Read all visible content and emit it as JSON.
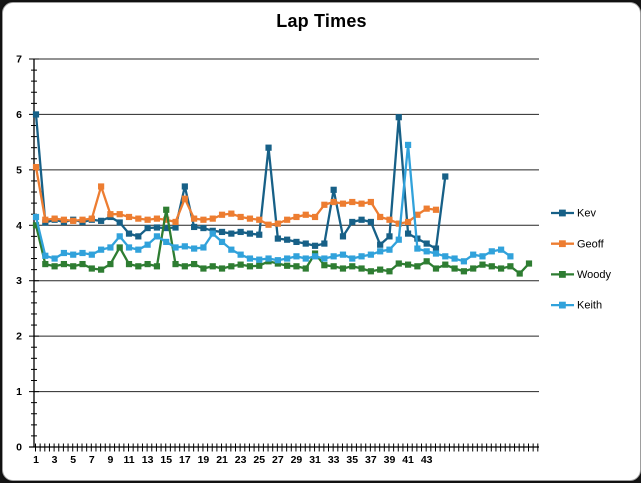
{
  "colors": {
    "background": "#FFFFFF",
    "card_border": "#9E9E9E",
    "axis": "#000000",
    "gridline": "#262626",
    "title_text": "#000000",
    "tick_label_text": "#000000",
    "legend_text": "#000000"
  },
  "chart_data": {
    "type": "line",
    "title": "Lap Times",
    "xlabel": "",
    "ylabel": "",
    "ylim": [
      0,
      7
    ],
    "y_tick_labels": [
      "0",
      "1",
      "2",
      "3",
      "4",
      "5",
      "6",
      "7"
    ],
    "x_tick_labels": [
      "1",
      "3",
      "5",
      "7",
      "9",
      "11",
      "13",
      "15",
      "17",
      "19",
      "21",
      "23",
      "25",
      "27",
      "29",
      "31",
      "33",
      "35",
      "37",
      "39",
      "41",
      "43"
    ],
    "x_tick_label_interval": 2,
    "x_axis_max_category": 54,
    "grid": "horizontal-major",
    "legend_position": "right",
    "marker": "square",
    "series": [
      {
        "name": "Kev",
        "color": "#176087",
        "values": [
          6.0,
          4.05,
          4.1,
          4.06,
          4.1,
          4.06,
          4.1,
          4.08,
          4.15,
          4.05,
          3.85,
          3.8,
          3.95,
          3.96,
          3.95,
          3.96,
          4.7,
          3.97,
          3.95,
          3.9,
          3.88,
          3.85,
          3.88,
          3.85,
          3.83,
          5.4,
          3.76,
          3.74,
          3.7,
          3.67,
          3.63,
          3.67,
          4.64,
          3.8,
          4.06,
          4.1,
          4.06,
          3.65,
          3.8,
          5.95,
          3.85,
          3.76,
          3.67,
          3.58,
          4.88
        ]
      },
      {
        "name": "Geoff",
        "color": "#ED7D31",
        "values": [
          5.05,
          4.1,
          4.12,
          4.1,
          4.08,
          4.1,
          4.12,
          4.7,
          4.2,
          4.2,
          4.15,
          4.12,
          4.1,
          4.12,
          4.1,
          4.06,
          4.48,
          4.12,
          4.1,
          4.12,
          4.19,
          4.21,
          4.15,
          4.12,
          4.1,
          4.01,
          4.03,
          4.1,
          4.15,
          4.19,
          4.15,
          4.37,
          4.42,
          4.39,
          4.42,
          4.39,
          4.42,
          4.15,
          4.1,
          4.03,
          4.06,
          4.19,
          4.3,
          4.28
        ]
      },
      {
        "name": "Woody",
        "color": "#2E7D32",
        "values": [
          4.0,
          3.3,
          3.26,
          3.3,
          3.26,
          3.3,
          3.22,
          3.2,
          3.3,
          3.6,
          3.3,
          3.26,
          3.3,
          3.26,
          4.28,
          3.3,
          3.26,
          3.3,
          3.22,
          3.26,
          3.22,
          3.26,
          3.29,
          3.26,
          3.27,
          3.35,
          3.31,
          3.27,
          3.26,
          3.22,
          3.49,
          3.28,
          3.26,
          3.22,
          3.26,
          3.22,
          3.17,
          3.2,
          3.17,
          3.31,
          3.29,
          3.26,
          3.35,
          3.22,
          3.29,
          3.22,
          3.17,
          3.22,
          3.29,
          3.26,
          3.22,
          3.26,
          3.13,
          3.31
        ]
      },
      {
        "name": "Keith",
        "color": "#31A2DB",
        "values": [
          4.15,
          3.45,
          3.4,
          3.5,
          3.47,
          3.5,
          3.47,
          3.56,
          3.6,
          3.8,
          3.6,
          3.56,
          3.65,
          3.8,
          3.7,
          3.6,
          3.62,
          3.58,
          3.6,
          3.85,
          3.7,
          3.56,
          3.47,
          3.4,
          3.38,
          3.4,
          3.37,
          3.4,
          3.44,
          3.4,
          3.44,
          3.4,
          3.44,
          3.47,
          3.4,
          3.44,
          3.47,
          3.53,
          3.56,
          3.74,
          5.45,
          3.58,
          3.53,
          3.49,
          3.44,
          3.4,
          3.35,
          3.47,
          3.44,
          3.53,
          3.56,
          3.44
        ]
      }
    ]
  }
}
